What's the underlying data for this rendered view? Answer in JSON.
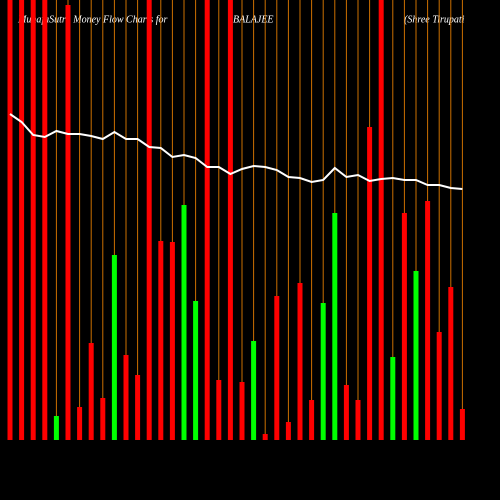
{
  "chart_data": {
    "type": "bar",
    "title": "MunafaSutra  Money Flow  Charts for",
    "subtitle": "BALAJEE",
    "company": "(Shree   Tirupati",
    "ylim": [
      0,
      440
    ],
    "grid_color": "#ff8c00",
    "line_color": "#ffffff",
    "values": [
      440,
      440,
      440,
      440,
      24,
      435,
      33,
      97,
      42,
      185,
      85,
      65,
      440,
      199,
      198,
      235,
      139,
      440,
      60,
      440,
      58,
      99,
      6,
      144,
      18,
      157,
      40,
      137,
      227,
      55,
      40,
      313,
      440,
      83,
      227,
      169,
      239,
      108,
      153,
      31
    ],
    "colors": [
      "red",
      "red",
      "red",
      "red",
      "lime",
      "red",
      "red",
      "red",
      "red",
      "lime",
      "red",
      "red",
      "red",
      "red",
      "red",
      "lime",
      "lime",
      "red",
      "red",
      "red",
      "red",
      "lime",
      "red",
      "red",
      "red",
      "red",
      "red",
      "lime",
      "lime",
      "red",
      "red",
      "red",
      "red",
      "lime",
      "red",
      "lime",
      "red",
      "red",
      "red",
      "red"
    ],
    "line_values": [
      326,
      318,
      305,
      303,
      309,
      306,
      306,
      304,
      301,
      308,
      301,
      301,
      293,
      292,
      283,
      285,
      282,
      273,
      273,
      266,
      271,
      274,
      273,
      270,
      263,
      262,
      258,
      260,
      272,
      263,
      265,
      259,
      261,
      262,
      260,
      260,
      255,
      255,
      252,
      251
    ]
  }
}
